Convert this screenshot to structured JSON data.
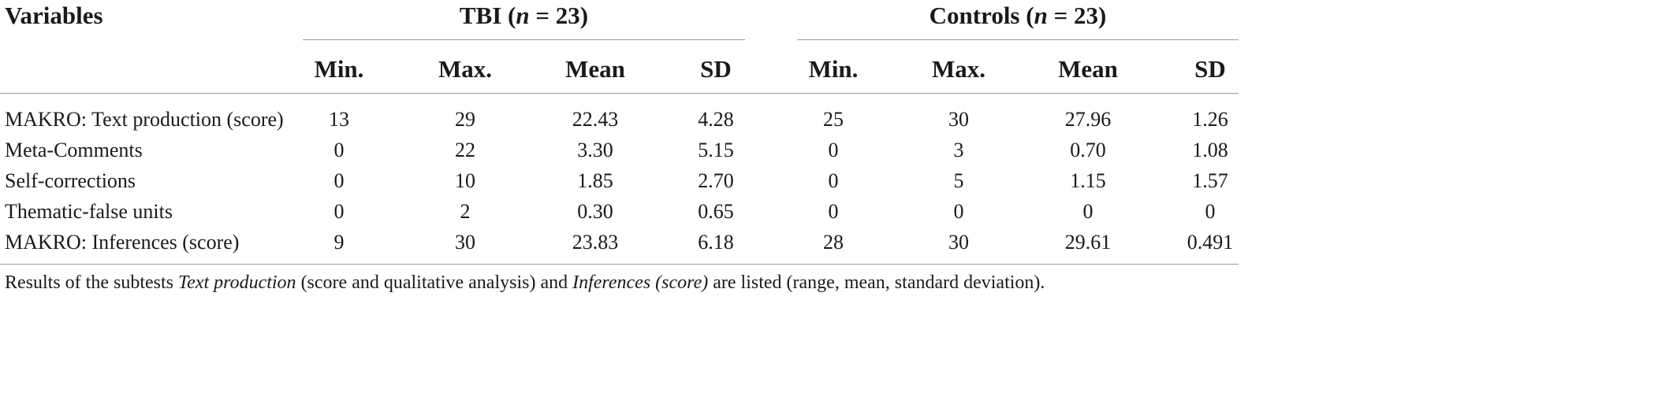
{
  "table": {
    "variables_label": "Variables",
    "groups": [
      {
        "name": "TBI",
        "n_label": "n",
        "n_value": "= 23)"
      },
      {
        "name": "Controls",
        "n_label": "n",
        "n_value": "= 23)"
      }
    ],
    "columns": [
      "Min.",
      "Max.",
      "Mean",
      "SD",
      "Min.",
      "Max.",
      "Mean",
      "SD"
    ],
    "rows": [
      {
        "label": "MAKRO: Text production (score)",
        "values": [
          "13",
          "29",
          "22.43",
          "4.28",
          "25",
          "30",
          "27.96",
          "1.26"
        ]
      },
      {
        "label": "Meta-Comments",
        "values": [
          "0",
          "22",
          "3.30",
          "5.15",
          "0",
          "3",
          "0.70",
          "1.08"
        ]
      },
      {
        "label": "Self-corrections",
        "values": [
          "0",
          "10",
          "1.85",
          "2.70",
          "0",
          "5",
          "1.15",
          "1.57"
        ]
      },
      {
        "label": "Thematic-false units",
        "values": [
          "0",
          "2",
          "0.30",
          "0.65",
          "0",
          "0",
          "0",
          "0"
        ]
      },
      {
        "label": "MAKRO: Inferences (score)",
        "values": [
          "9",
          "30",
          "23.83",
          "6.18",
          "28",
          "30",
          "29.61",
          "0.491"
        ]
      }
    ]
  },
  "footnote": {
    "part1": "Results of the subtests ",
    "italic1": "Text production",
    "part2": " (score and qualitative analysis) and ",
    "italic2": "Inferences (score)",
    "part3": " are listed (range, mean, standard deviation)."
  }
}
